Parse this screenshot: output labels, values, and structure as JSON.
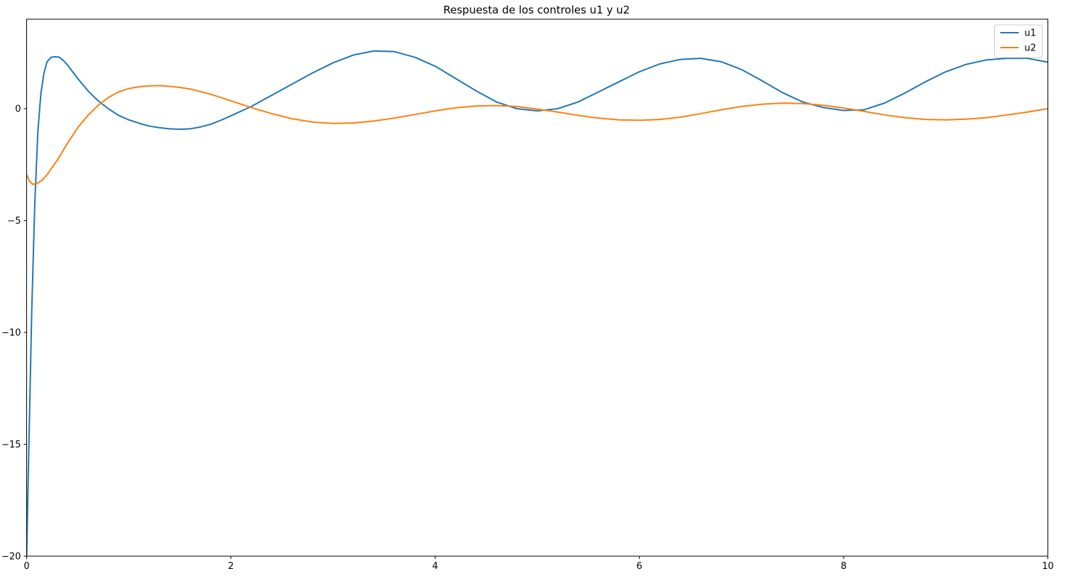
{
  "chart_data": {
    "type": "line",
    "title": "Respuesta de los controles u1 y u2",
    "xlabel": "",
    "ylabel": "",
    "xlim": [
      0,
      10
    ],
    "ylim": [
      -20,
      4
    ],
    "xticks": [
      0,
      2,
      4,
      6,
      8,
      10
    ],
    "yticks": [
      -20,
      -15,
      -10,
      -5,
      0
    ],
    "grid": false,
    "legend": "top-right",
    "series": [
      {
        "name": "u1",
        "color": "#1f77b4",
        "x": [
          0,
          0.02,
          0.05,
          0.08,
          0.11,
          0.14,
          0.17,
          0.2,
          0.24,
          0.28,
          0.32,
          0.36,
          0.4,
          0.45,
          0.5,
          0.6,
          0.7,
          0.8,
          0.9,
          1.0,
          1.1,
          1.2,
          1.3,
          1.4,
          1.5,
          1.6,
          1.7,
          1.8,
          1.9,
          2.0,
          2.2,
          2.4,
          2.6,
          2.8,
          3.0,
          3.2,
          3.4,
          3.6,
          3.8,
          4.0,
          4.2,
          4.4,
          4.6,
          4.8,
          5.0,
          5.2,
          5.4,
          5.6,
          5.8,
          6.0,
          6.2,
          6.4,
          6.6,
          6.8,
          7.0,
          7.2,
          7.4,
          7.6,
          7.8,
          8.0,
          8.2,
          8.4,
          8.6,
          8.8,
          9.0,
          9.2,
          9.4,
          9.6,
          9.8,
          10.0
        ],
        "values": [
          -20,
          -15.5,
          -9,
          -4.2,
          -1.0,
          0.7,
          1.6,
          2.1,
          2.3,
          2.32,
          2.3,
          2.15,
          1.95,
          1.65,
          1.35,
          0.8,
          0.35,
          0.0,
          -0.3,
          -0.5,
          -0.65,
          -0.78,
          -0.85,
          -0.9,
          -0.92,
          -0.9,
          -0.82,
          -0.7,
          -0.52,
          -0.32,
          0.1,
          0.6,
          1.1,
          1.6,
          2.05,
          2.4,
          2.58,
          2.55,
          2.3,
          1.9,
          1.35,
          0.8,
          0.3,
          0.0,
          -0.1,
          0.0,
          0.3,
          0.75,
          1.2,
          1.65,
          2.0,
          2.2,
          2.25,
          2.1,
          1.75,
          1.25,
          0.72,
          0.3,
          0.05,
          -0.08,
          -0.05,
          0.25,
          0.7,
          1.2,
          1.65,
          1.98,
          2.18,
          2.25,
          2.25,
          2.08
        ]
      },
      {
        "name": "u2",
        "color": "#ff7f0e",
        "x": [
          0,
          0.03,
          0.06,
          0.1,
          0.15,
          0.2,
          0.3,
          0.4,
          0.5,
          0.6,
          0.7,
          0.8,
          0.9,
          1.0,
          1.1,
          1.2,
          1.3,
          1.4,
          1.5,
          1.6,
          1.8,
          2.0,
          2.2,
          2.4,
          2.6,
          2.8,
          3.0,
          3.2,
          3.4,
          3.6,
          3.8,
          4.0,
          4.2,
          4.4,
          4.6,
          4.8,
          5.0,
          5.2,
          5.4,
          5.6,
          5.8,
          6.0,
          6.2,
          6.4,
          6.6,
          6.8,
          7.0,
          7.2,
          7.4,
          7.6,
          7.8,
          8.0,
          8.2,
          8.4,
          8.6,
          8.8,
          9.0,
          9.2,
          9.4,
          9.6,
          9.8,
          10.0
        ],
        "values": [
          -2.95,
          -3.25,
          -3.38,
          -3.35,
          -3.2,
          -2.95,
          -2.3,
          -1.55,
          -0.85,
          -0.3,
          0.15,
          0.5,
          0.75,
          0.9,
          0.98,
          1.02,
          1.03,
          1.0,
          0.95,
          0.88,
          0.65,
          0.35,
          0.05,
          -0.22,
          -0.45,
          -0.6,
          -0.66,
          -0.64,
          -0.55,
          -0.42,
          -0.26,
          -0.1,
          0.04,
          0.12,
          0.14,
          0.1,
          -0.02,
          -0.15,
          -0.3,
          -0.42,
          -0.5,
          -0.52,
          -0.48,
          -0.38,
          -0.22,
          -0.05,
          0.1,
          0.2,
          0.25,
          0.23,
          0.15,
          0.03,
          -0.12,
          -0.28,
          -0.4,
          -0.48,
          -0.5,
          -0.47,
          -0.4,
          -0.28,
          -0.15,
          0.0
        ]
      }
    ]
  }
}
